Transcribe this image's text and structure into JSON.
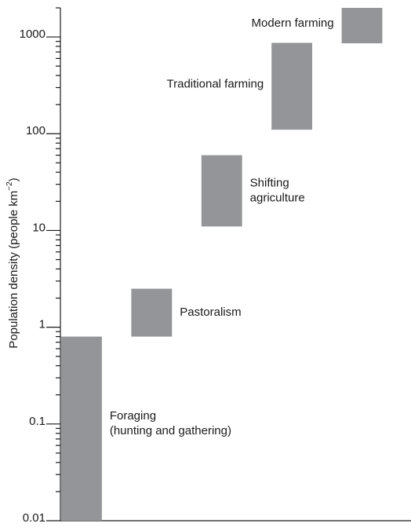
{
  "chart_data": {
    "type": "floating_bar",
    "y_label": "Population density (people km",
    "y_label_sup": "−2",
    "y_label_end": ")",
    "categories": [
      [
        "Foraging",
        "(hunting and gathering)"
      ],
      [
        "Pastoralism"
      ],
      [
        "Shifting",
        "agriculture"
      ],
      [
        "Traditional farming"
      ],
      [
        "Modern farming"
      ]
    ],
    "low": [
      0.01,
      0.8,
      11,
      110,
      860
    ],
    "high": [
      0.8,
      2.5,
      60,
      870,
      2000
    ],
    "color": "#939598",
    "log_scale": true,
    "minor_ticks": true,
    "ylim": [
      0.01,
      2000
    ],
    "yticks": [
      0.01,
      0.1,
      1,
      10,
      100,
      1000
    ]
  }
}
